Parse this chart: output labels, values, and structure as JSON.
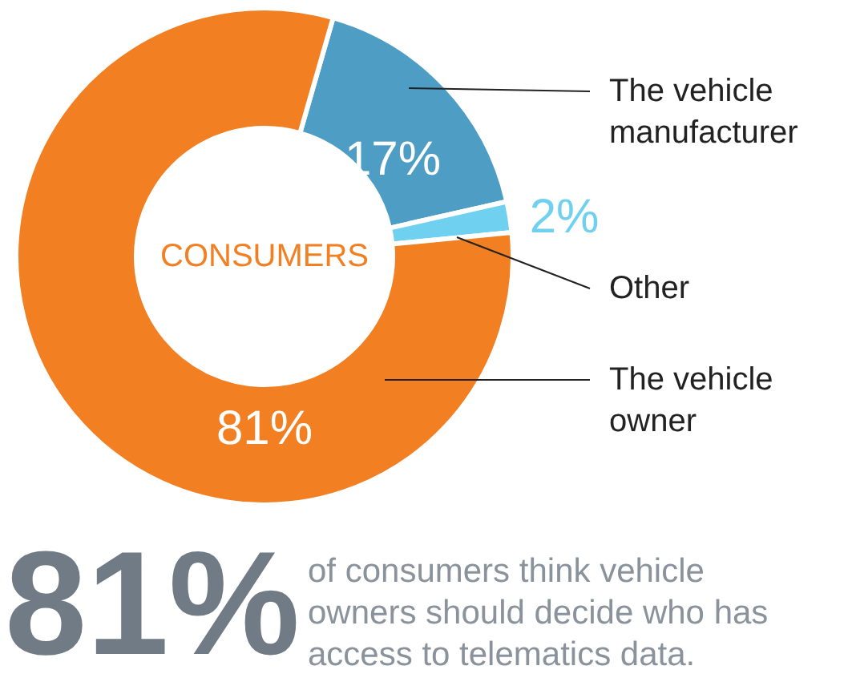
{
  "chart_data": {
    "type": "donut",
    "categories": [
      "The vehicle manufacturer",
      "Other",
      "The vehicle owner"
    ],
    "values": [
      17,
      2,
      81
    ],
    "colors": [
      "#4e9dc4",
      "#6fd0ef",
      "#f27f22"
    ],
    "value_labels": [
      "17%",
      "2%",
      "81%"
    ],
    "annotations": [
      "CONSUMERS",
      "81%",
      "of consumers think vehicle owners should decide who has access to telematics data."
    ]
  }
}
